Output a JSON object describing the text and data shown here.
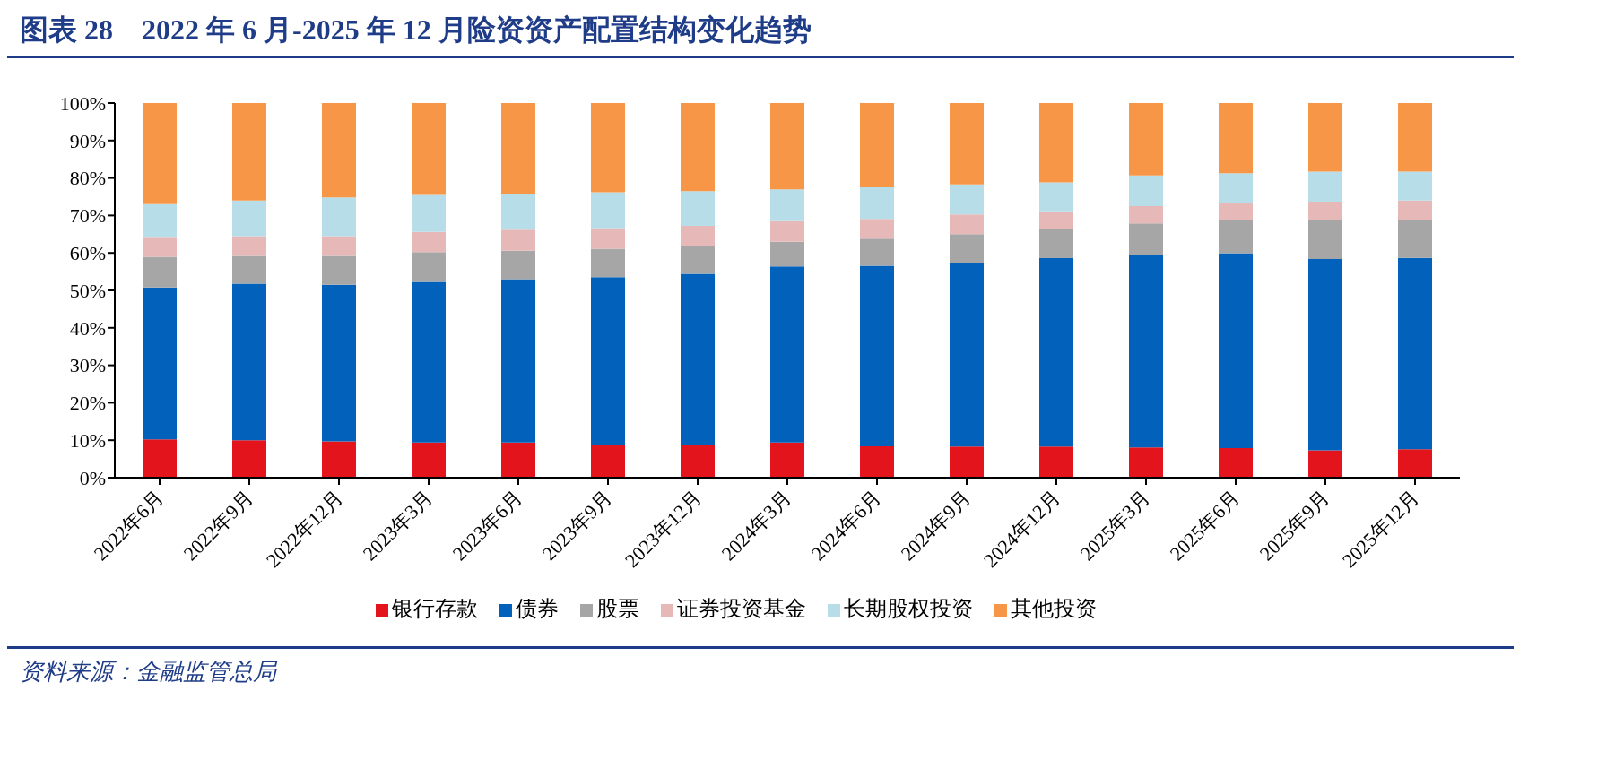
{
  "chart_data": {
    "type": "bar",
    "title": "图表 28　2022 年 6 月-2025 年 12 月险资资产配置结构变化趋势",
    "stacked": true,
    "categories": [
      "2022年6月",
      "2022年9月",
      "2022年12月",
      "2023年3月",
      "2023年6月",
      "2023年9月",
      "2023年12月",
      "2024年3月",
      "2024年6月",
      "2024年9月",
      "2024年12月",
      "2025年3月",
      "2025年6月",
      "2025年9月",
      "2025年12月"
    ],
    "series": [
      {
        "name": "银行存款",
        "color": "#e3141c",
        "values": [
          10.2,
          10,
          9.7,
          9.4,
          9.4,
          8.8,
          8.6,
          9.4,
          8.4,
          8.3,
          8.3,
          8.1,
          7.9,
          7.3,
          7.6
        ]
      },
      {
        "name": "债券",
        "color": "#0262bb",
        "values": [
          40.6,
          41.8,
          41.8,
          42.9,
          43.6,
          44.7,
          45.8,
          47.0,
          48.2,
          49.1,
          50.3,
          51.3,
          52.0,
          51.1,
          51.1
        ]
      },
      {
        "name": "股票",
        "color": "#a6a6a6",
        "values": [
          8.2,
          7.4,
          7.7,
          7.9,
          7.6,
          7.6,
          7.3,
          6.6,
          7.2,
          7.6,
          7.7,
          8.5,
          8.8,
          10.3,
          10.2
        ]
      },
      {
        "name": "证券投资基金",
        "color": "#e6b8b7",
        "values": [
          5.3,
          5.3,
          5.3,
          5.4,
          5.6,
          5.5,
          5.5,
          5.5,
          5.3,
          5.3,
          4.8,
          4.6,
          4.6,
          5.0,
          5.1
        ]
      },
      {
        "name": "长期股权投资",
        "color": "#b7dde8",
        "values": [
          8.7,
          9.5,
          10.3,
          9.9,
          9.6,
          9.6,
          9.3,
          8.5,
          8.4,
          8.0,
          7.7,
          8.2,
          8.0,
          8.0,
          7.7
        ]
      },
      {
        "name": "其他投资",
        "color": "#f79646",
        "values": [
          27.0,
          26.0,
          25.2,
          24.5,
          24.2,
          23.8,
          23.5,
          23.0,
          22.5,
          21.7,
          21.2,
          19.3,
          18.7,
          18.3,
          18.3
        ]
      }
    ],
    "ylim": [
      0,
      100
    ],
    "yticks": [
      {
        "value": 0,
        "label": "0%"
      },
      {
        "value": 10,
        "label": "10%"
      },
      {
        "value": 20,
        "label": "20%"
      },
      {
        "value": 30,
        "label": "30%"
      },
      {
        "value": 40,
        "label": "40%"
      },
      {
        "value": 50,
        "label": "50%"
      },
      {
        "value": 60,
        "label": "60%"
      },
      {
        "value": 70,
        "label": "70%"
      },
      {
        "value": 80,
        "label": "80%"
      },
      {
        "value": 90,
        "label": "90%"
      },
      {
        "value": 100,
        "label": "100%"
      }
    ],
    "legend": "bottom",
    "grid": false,
    "annotations": [
      "资料来源：金融监管总局"
    ]
  }
}
